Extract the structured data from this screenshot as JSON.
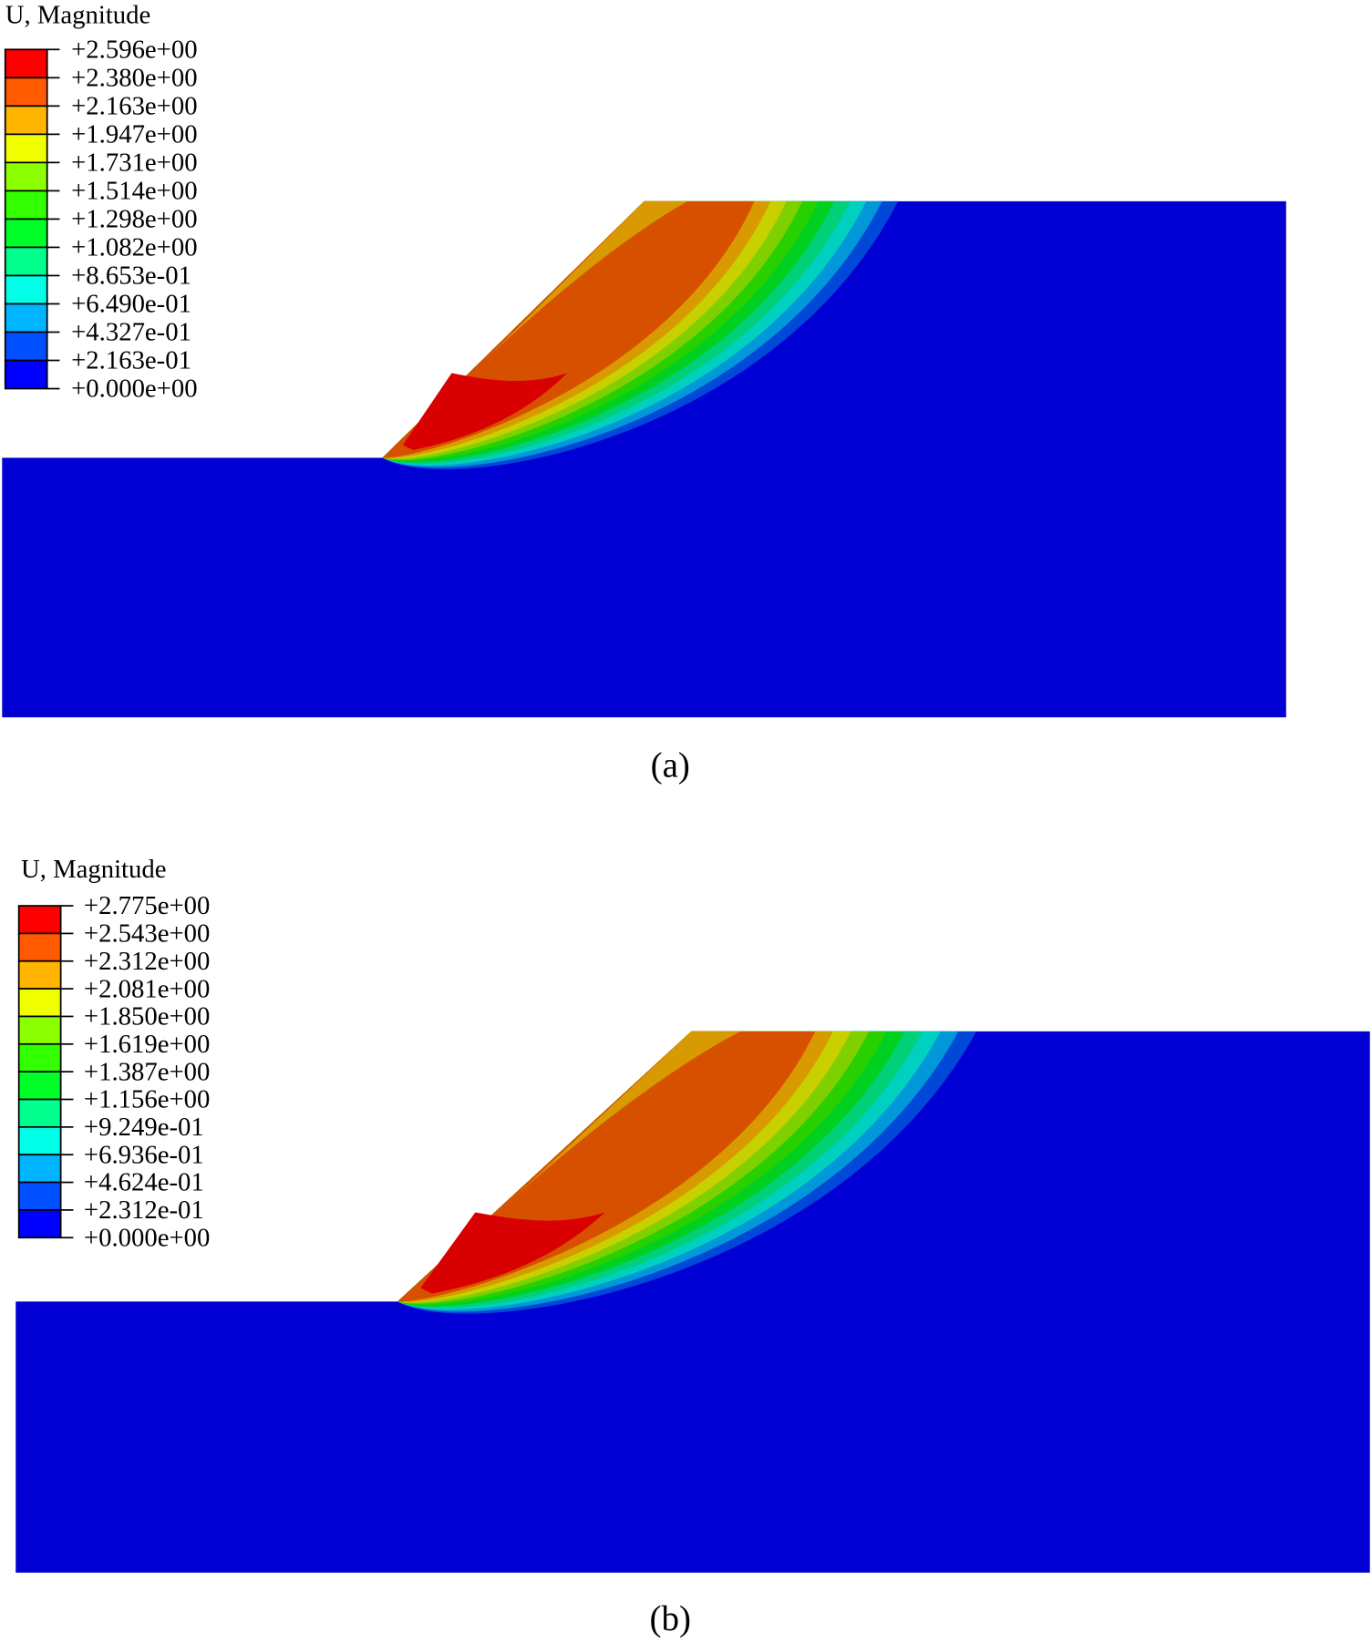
{
  "panels": [
    {
      "caption": "(a)",
      "legend_title": "U, Magnitude",
      "legend_values": [
        "+2.596e+00",
        "+2.380e+00",
        "+2.163e+00",
        "+1.947e+00",
        "+1.731e+00",
        "+1.514e+00",
        "+1.298e+00",
        "+1.082e+00",
        "+8.653e-01",
        "+6.490e-01",
        "+4.327e-01",
        "+2.163e-01",
        "+0.000e+00"
      ]
    },
    {
      "caption": "(b)",
      "legend_title": "U, Magnitude",
      "legend_values": [
        "+2.775e+00",
        "+2.543e+00",
        "+2.312e+00",
        "+2.081e+00",
        "+1.850e+00",
        "+1.619e+00",
        "+1.387e+00",
        "+1.156e+00",
        "+9.249e-01",
        "+6.936e-01",
        "+4.624e-01",
        "+2.312e-01",
        "+0.000e+00"
      ]
    }
  ],
  "legend_colors": [
    "#ff0000",
    "#ff5a00",
    "#ffb400",
    "#f0ff00",
    "#8cff00",
    "#32ff00",
    "#00ff28",
    "#00ff8c",
    "#00ffe6",
    "#00b4ff",
    "#0050ff",
    "#0000ff"
  ],
  "plot_colors": {
    "background": "#0000d4",
    "bands_outer_to_inner": [
      "#0048d8",
      "#0098d8",
      "#00d0c0",
      "#00d078",
      "#00d020",
      "#28d000",
      "#80d000",
      "#c8d000",
      "#d89a00",
      "#d75000"
    ],
    "face_band": "#d89a00",
    "peak": "#d80000"
  }
}
